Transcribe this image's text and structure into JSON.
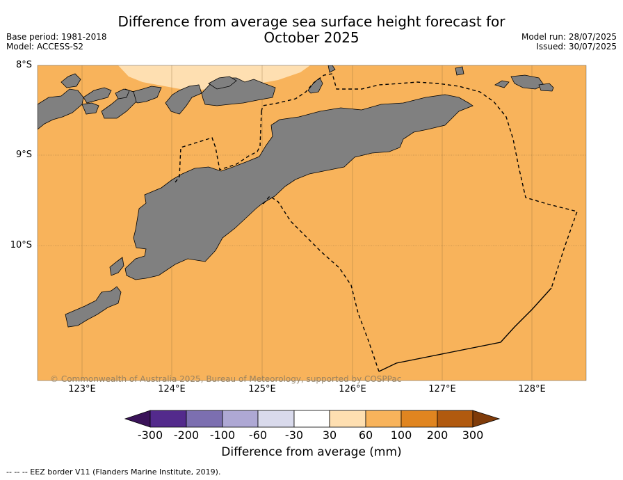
{
  "header": {
    "title_line1": "Difference from average sea surface height forecast for",
    "title_line2": "October 2025",
    "base_period": "Base period: 1981-2018",
    "model": "Model: ACCESS-S2",
    "model_run": "Model run: 28/07/2025",
    "issued": "Issued: 30/07/2025"
  },
  "axes": {
    "lat_labels": [
      "8°S",
      "9°S",
      "10°S"
    ],
    "lon_labels": [
      "123°E",
      "124°E",
      "125°E",
      "126°E",
      "127°E",
      "128°E"
    ]
  },
  "map": {
    "ocean_color": "#f8b35b",
    "light_band_color": "#fedfb1",
    "land_color": "#808080",
    "copyright": "© Commonwealth of Australia 2025, Bureau of Meteorology, supported by COSPPac"
  },
  "colorbar": {
    "title": "Difference from average (mm)",
    "labels": [
      "-300",
      "-200",
      "-100",
      "-60",
      "-30",
      "30",
      "60",
      "100",
      "200",
      "300"
    ],
    "colors": [
      "#3a1359",
      "#532a8c",
      "#7c6fb0",
      "#aea8d4",
      "#d9daec",
      "#ffffff",
      "#fedfb1",
      "#f8b35b",
      "#e08520",
      "#b15a0f",
      "#7f3b09"
    ]
  },
  "footnote": "--  --  -- EEZ border V11 (Flanders Marine Institute, 2019)."
}
